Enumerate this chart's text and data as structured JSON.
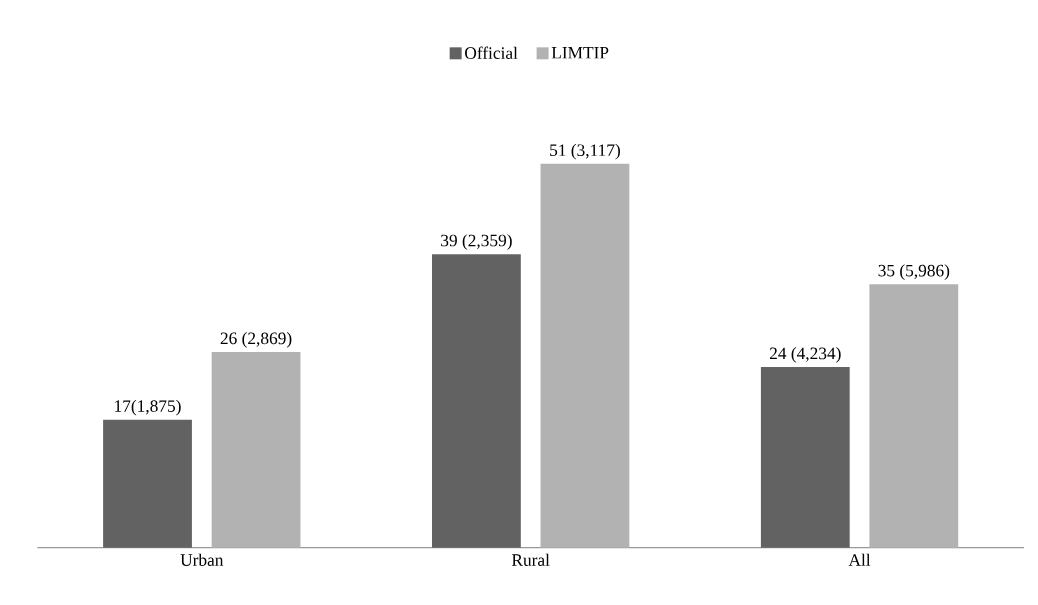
{
  "chart_data": {
    "type": "bar",
    "categories": [
      "Urban",
      "Rural",
      "All"
    ],
    "series": [
      {
        "name": "Official",
        "color": "#626262",
        "values": [
          17,
          39,
          24
        ],
        "value_labels": [
          "17(1,875)",
          "39 (2,359)",
          "24 (4,234)"
        ]
      },
      {
        "name": "LIMTIP",
        "color": "#b2b2b2",
        "values": [
          26,
          51,
          35
        ],
        "value_labels": [
          "26 (2,869)",
          "51 (3,117)",
          "35 (5,986)"
        ]
      }
    ],
    "legend": "top"
  }
}
